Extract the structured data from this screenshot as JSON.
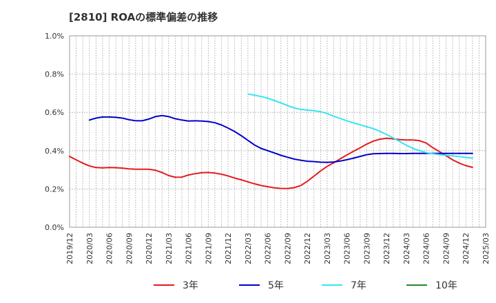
{
  "chart_data": {
    "type": "line",
    "title": "[2810]  ROAの標準偏差の推移",
    "xlabel": "",
    "ylabel": "",
    "x_ticks": [
      "2019/12",
      "2020/03",
      "2020/06",
      "2020/09",
      "2020/12",
      "2021/03",
      "2021/06",
      "2021/09",
      "2021/12",
      "2022/03",
      "2022/06",
      "2022/09",
      "2022/12",
      "2023/03",
      "2023/06",
      "2023/09",
      "2023/12",
      "2024/03",
      "2024/06",
      "2024/09",
      "2024/12",
      "2025/03"
    ],
    "y_ticks": [
      "0.0%",
      "0.2%",
      "0.4%",
      "0.6%",
      "0.8%",
      "1.0%"
    ],
    "ylim": [
      0.0,
      1.0
    ],
    "x_start": "2019-12",
    "grid": true,
    "legend_position": "bottom",
    "series": [
      {
        "name": "3年",
        "color": "#e41a1c",
        "points": [
          [
            "2019-12",
            0.37
          ],
          [
            "2020-01",
            0.352
          ],
          [
            "2020-02",
            0.335
          ],
          [
            "2020-03",
            0.32
          ],
          [
            "2020-04",
            0.312
          ],
          [
            "2020-05",
            0.31
          ],
          [
            "2020-06",
            0.312
          ],
          [
            "2020-07",
            0.311
          ],
          [
            "2020-08",
            0.309
          ],
          [
            "2020-09",
            0.305
          ],
          [
            "2020-10",
            0.303
          ],
          [
            "2020-11",
            0.303
          ],
          [
            "2020-12",
            0.303
          ],
          [
            "2021-01",
            0.298
          ],
          [
            "2021-02",
            0.286
          ],
          [
            "2021-03",
            0.27
          ],
          [
            "2021-04",
            0.261
          ],
          [
            "2021-05",
            0.262
          ],
          [
            "2021-06",
            0.273
          ],
          [
            "2021-07",
            0.28
          ],
          [
            "2021-08",
            0.285
          ],
          [
            "2021-09",
            0.286
          ],
          [
            "2021-10",
            0.283
          ],
          [
            "2021-11",
            0.277
          ],
          [
            "2021-12",
            0.268
          ],
          [
            "2022-01",
            0.257
          ],
          [
            "2022-02",
            0.248
          ],
          [
            "2022-03",
            0.237
          ],
          [
            "2022-04",
            0.227
          ],
          [
            "2022-05",
            0.218
          ],
          [
            "2022-06",
            0.212
          ],
          [
            "2022-07",
            0.206
          ],
          [
            "2022-08",
            0.203
          ],
          [
            "2022-09",
            0.202
          ],
          [
            "2022-10",
            0.207
          ],
          [
            "2022-11",
            0.218
          ],
          [
            "2022-12",
            0.24
          ],
          [
            "2023-01",
            0.267
          ],
          [
            "2023-02",
            0.294
          ],
          [
            "2023-03",
            0.318
          ],
          [
            "2023-04",
            0.337
          ],
          [
            "2023-05",
            0.358
          ],
          [
            "2023-06",
            0.378
          ],
          [
            "2023-07",
            0.397
          ],
          [
            "2023-08",
            0.415
          ],
          [
            "2023-09",
            0.434
          ],
          [
            "2023-10",
            0.45
          ],
          [
            "2023-11",
            0.46
          ],
          [
            "2023-12",
            0.465
          ],
          [
            "2024-01",
            0.462
          ],
          [
            "2024-02",
            0.458
          ],
          [
            "2024-03",
            0.456
          ],
          [
            "2024-04",
            0.456
          ],
          [
            "2024-05",
            0.452
          ],
          [
            "2024-06",
            0.44
          ],
          [
            "2024-07",
            0.416
          ],
          [
            "2024-08",
            0.395
          ],
          [
            "2024-09",
            0.374
          ],
          [
            "2024-10",
            0.352
          ],
          [
            "2024-11",
            0.335
          ],
          [
            "2024-12",
            0.322
          ],
          [
            "2025-01",
            0.313
          ]
        ]
      },
      {
        "name": "5年",
        "color": "#0000cc",
        "points": [
          [
            "2020-03",
            0.56
          ],
          [
            "2020-04",
            0.57
          ],
          [
            "2020-05",
            0.576
          ],
          [
            "2020-06",
            0.576
          ],
          [
            "2020-07",
            0.574
          ],
          [
            "2020-08",
            0.57
          ],
          [
            "2020-09",
            0.562
          ],
          [
            "2020-10",
            0.556
          ],
          [
            "2020-11",
            0.556
          ],
          [
            "2020-12",
            0.565
          ],
          [
            "2021-01",
            0.578
          ],
          [
            "2021-02",
            0.583
          ],
          [
            "2021-03",
            0.578
          ],
          [
            "2021-04",
            0.567
          ],
          [
            "2021-05",
            0.56
          ],
          [
            "2021-06",
            0.555
          ],
          [
            "2021-07",
            0.556
          ],
          [
            "2021-08",
            0.555
          ],
          [
            "2021-09",
            0.552
          ],
          [
            "2021-10",
            0.546
          ],
          [
            "2021-11",
            0.534
          ],
          [
            "2021-12",
            0.518
          ],
          [
            "2022-01",
            0.5
          ],
          [
            "2022-02",
            0.478
          ],
          [
            "2022-03",
            0.454
          ],
          [
            "2022-04",
            0.43
          ],
          [
            "2022-05",
            0.412
          ],
          [
            "2022-06",
            0.4
          ],
          [
            "2022-07",
            0.388
          ],
          [
            "2022-08",
            0.376
          ],
          [
            "2022-09",
            0.366
          ],
          [
            "2022-10",
            0.356
          ],
          [
            "2022-11",
            0.35
          ],
          [
            "2022-12",
            0.345
          ],
          [
            "2023-01",
            0.343
          ],
          [
            "2023-02",
            0.34
          ],
          [
            "2023-03",
            0.339
          ],
          [
            "2023-04",
            0.341
          ],
          [
            "2023-05",
            0.346
          ],
          [
            "2023-06",
            0.353
          ],
          [
            "2023-07",
            0.361
          ],
          [
            "2023-08",
            0.37
          ],
          [
            "2023-09",
            0.379
          ],
          [
            "2023-10",
            0.384
          ],
          [
            "2023-11",
            0.385
          ],
          [
            "2023-12",
            0.386
          ],
          [
            "2024-01",
            0.386
          ],
          [
            "2024-02",
            0.385
          ],
          [
            "2024-03",
            0.385
          ],
          [
            "2024-04",
            0.386
          ],
          [
            "2024-05",
            0.386
          ],
          [
            "2024-06",
            0.386
          ],
          [
            "2024-07",
            0.386
          ],
          [
            "2024-08",
            0.386
          ],
          [
            "2024-09",
            0.386
          ],
          [
            "2024-10",
            0.386
          ],
          [
            "2024-11",
            0.386
          ],
          [
            "2024-12",
            0.386
          ],
          [
            "2025-01",
            0.386
          ]
        ]
      },
      {
        "name": "7年",
        "color": "#33e6f2",
        "points": [
          [
            "2022-03",
            0.696
          ],
          [
            "2022-04",
            0.69
          ],
          [
            "2022-05",
            0.683
          ],
          [
            "2022-06",
            0.674
          ],
          [
            "2022-07",
            0.662
          ],
          [
            "2022-08",
            0.649
          ],
          [
            "2022-09",
            0.636
          ],
          [
            "2022-10",
            0.623
          ],
          [
            "2022-11",
            0.616
          ],
          [
            "2022-12",
            0.612
          ],
          [
            "2023-01",
            0.609
          ],
          [
            "2023-02",
            0.604
          ],
          [
            "2023-03",
            0.594
          ],
          [
            "2023-04",
            0.58
          ],
          [
            "2023-05",
            0.568
          ],
          [
            "2023-06",
            0.556
          ],
          [
            "2023-07",
            0.545
          ],
          [
            "2023-08",
            0.535
          ],
          [
            "2023-09",
            0.525
          ],
          [
            "2023-10",
            0.515
          ],
          [
            "2023-11",
            0.501
          ],
          [
            "2023-12",
            0.484
          ],
          [
            "2024-01",
            0.467
          ],
          [
            "2024-02",
            0.448
          ],
          [
            "2024-03",
            0.428
          ],
          [
            "2024-04",
            0.412
          ],
          [
            "2024-05",
            0.4
          ],
          [
            "2024-06",
            0.39
          ],
          [
            "2024-07",
            0.384
          ],
          [
            "2024-08",
            0.379
          ],
          [
            "2024-09",
            0.376
          ],
          [
            "2024-10",
            0.373
          ],
          [
            "2024-11",
            0.369
          ],
          [
            "2024-12",
            0.365
          ],
          [
            "2025-01",
            0.361
          ]
        ]
      },
      {
        "name": "10年",
        "color": "#228b22",
        "points": []
      }
    ]
  }
}
